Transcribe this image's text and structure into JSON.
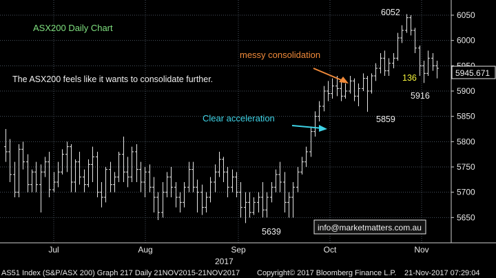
{
  "chart_data": {
    "type": "bar",
    "subtype": "ohlc",
    "title": "ASX200 Daily Chart",
    "note": "The ASX200 feels like it wants to consolidate further.",
    "ylim": [
      5600,
      6080
    ],
    "yticks": [
      "5650",
      "5700",
      "5750",
      "5800",
      "5850",
      "5900",
      "5950",
      "6000",
      "6050"
    ],
    "xticks": [
      "Jul",
      "Aug",
      "Sep",
      "Oct",
      "Nov"
    ],
    "year_label": "2017",
    "last_price": "5945.671",
    "grid": true,
    "series_color": "#e6e6e6",
    "annotations": {
      "messy": "messy consolidation",
      "clear": "Clear acceleration",
      "high": "6052",
      "low_sep": "5639",
      "oct_low": "5859",
      "nov_low": "5916",
      "count": "136"
    },
    "email": "info@marketmatters.com.au",
    "footer_left": "AS51 Index (S&P/ASX 200) Graph 217  Daily 21NOV2015-21NOV2017",
    "footer_mid": "Copyright© 2017 Bloomberg Finance L.P.",
    "footer_right": "21-Nov-2017 07:29:04",
    "colors": {
      "background": "#000000",
      "bars": "#e6e6e6",
      "title": "#7fe07f",
      "orange": "#f08a3a",
      "cyan": "#3ed3e6",
      "yellow": "#f2f23a"
    },
    "ohlc": [
      [
        5790,
        5825,
        5760,
        5780
      ],
      [
        5780,
        5805,
        5720,
        5735
      ],
      [
        5735,
        5760,
        5690,
        5700
      ],
      [
        5700,
        5795,
        5690,
        5785
      ],
      [
        5785,
        5800,
        5745,
        5760
      ],
      [
        5760,
        5775,
        5700,
        5715
      ],
      [
        5715,
        5745,
        5700,
        5740
      ],
      [
        5740,
        5760,
        5700,
        5715
      ],
      [
        5715,
        5755,
        5660,
        5740
      ],
      [
        5740,
        5770,
        5730,
        5760
      ],
      [
        5760,
        5780,
        5690,
        5705
      ],
      [
        5705,
        5740,
        5700,
        5720
      ],
      [
        5720,
        5760,
        5710,
        5740
      ],
      [
        5740,
        5785,
        5735,
        5775
      ],
      [
        5775,
        5800,
        5740,
        5790
      ],
      [
        5790,
        5795,
        5700,
        5720
      ],
      [
        5720,
        5765,
        5700,
        5760
      ],
      [
        5760,
        5780,
        5715,
        5730
      ],
      [
        5730,
        5745,
        5700,
        5715
      ],
      [
        5715,
        5765,
        5710,
        5755
      ],
      [
        5755,
        5790,
        5720,
        5770
      ],
      [
        5770,
        5780,
        5690,
        5700
      ],
      [
        5700,
        5720,
        5670,
        5690
      ],
      [
        5690,
        5750,
        5680,
        5745
      ],
      [
        5745,
        5760,
        5700,
        5715
      ],
      [
        5715,
        5740,
        5700,
        5730
      ],
      [
        5730,
        5780,
        5720,
        5775
      ],
      [
        5775,
        5810,
        5720,
        5740
      ],
      [
        5740,
        5770,
        5710,
        5730
      ],
      [
        5730,
        5790,
        5720,
        5780
      ],
      [
        5780,
        5795,
        5720,
        5745
      ],
      [
        5745,
        5760,
        5700,
        5720
      ],
      [
        5720,
        5750,
        5690,
        5740
      ],
      [
        5740,
        5755,
        5700,
        5710
      ],
      [
        5710,
        5730,
        5660,
        5690
      ],
      [
        5690,
        5700,
        5645,
        5660
      ],
      [
        5660,
        5720,
        5650,
        5700
      ],
      [
        5700,
        5740,
        5690,
        5730
      ],
      [
        5730,
        5750,
        5690,
        5710
      ],
      [
        5710,
        5720,
        5670,
        5690
      ],
      [
        5690,
        5700,
        5660,
        5680
      ],
      [
        5680,
        5720,
        5670,
        5710
      ],
      [
        5710,
        5760,
        5700,
        5745
      ],
      [
        5745,
        5760,
        5700,
        5710
      ],
      [
        5710,
        5725,
        5660,
        5700
      ],
      [
        5700,
        5715,
        5655,
        5670
      ],
      [
        5670,
        5700,
        5660,
        5690
      ],
      [
        5690,
        5730,
        5680,
        5720
      ],
      [
        5720,
        5755,
        5700,
        5740
      ],
      [
        5740,
        5780,
        5730,
        5765
      ],
      [
        5765,
        5770,
        5720,
        5740
      ],
      [
        5740,
        5750,
        5690,
        5710
      ],
      [
        5710,
        5745,
        5700,
        5730
      ],
      [
        5730,
        5740,
        5690,
        5700
      ],
      [
        5700,
        5720,
        5650,
        5670
      ],
      [
        5670,
        5700,
        5639,
        5680
      ],
      [
        5680,
        5700,
        5650,
        5660
      ],
      [
        5660,
        5690,
        5655,
        5680
      ],
      [
        5680,
        5700,
        5660,
        5690
      ],
      [
        5690,
        5720,
        5650,
        5665
      ],
      [
        5665,
        5700,
        5650,
        5690
      ],
      [
        5690,
        5720,
        5680,
        5710
      ],
      [
        5710,
        5745,
        5700,
        5735
      ],
      [
        5735,
        5760,
        5700,
        5720
      ],
      [
        5720,
        5740,
        5660,
        5680
      ],
      [
        5680,
        5700,
        5650,
        5690
      ],
      [
        5690,
        5720,
        5650,
        5710
      ],
      [
        5710,
        5750,
        5700,
        5740
      ],
      [
        5740,
        5770,
        5735,
        5760
      ],
      [
        5760,
        5790,
        5750,
        5780
      ],
      [
        5780,
        5830,
        5770,
        5820
      ],
      [
        5820,
        5860,
        5810,
        5850
      ],
      [
        5850,
        5880,
        5840,
        5870
      ],
      [
        5870,
        5910,
        5860,
        5900
      ],
      [
        5900,
        5920,
        5880,
        5895
      ],
      [
        5895,
        5925,
        5885,
        5910
      ],
      [
        5910,
        5930,
        5890,
        5905
      ],
      [
        5905,
        5920,
        5880,
        5890
      ],
      [
        5890,
        5915,
        5885,
        5900
      ],
      [
        5900,
        5930,
        5895,
        5920
      ],
      [
        5920,
        5925,
        5880,
        5890
      ],
      [
        5890,
        5915,
        5870,
        5905
      ],
      [
        5905,
        5935,
        5900,
        5925
      ],
      [
        5925,
        5930,
        5859,
        5900
      ],
      [
        5900,
        5935,
        5895,
        5930
      ],
      [
        5930,
        5955,
        5920,
        5945
      ],
      [
        5945,
        5975,
        5935,
        5965
      ],
      [
        5965,
        5980,
        5930,
        5940
      ],
      [
        5940,
        5965,
        5930,
        5955
      ],
      [
        5955,
        5975,
        5945,
        5965
      ],
      [
        5965,
        6015,
        5960,
        6005
      ],
      [
        6005,
        6030,
        5995,
        6020
      ],
      [
        6020,
        6052,
        6015,
        6045
      ],
      [
        6045,
        6050,
        6010,
        6020
      ],
      [
        6020,
        6025,
        5975,
        5985
      ],
      [
        5985,
        5990,
        5930,
        5950
      ],
      [
        5950,
        5960,
        5916,
        5935
      ],
      [
        5935,
        5980,
        5930,
        5965
      ],
      [
        5965,
        5975,
        5940,
        5950
      ],
      [
        5950,
        5960,
        5925,
        5945
      ]
    ]
  }
}
